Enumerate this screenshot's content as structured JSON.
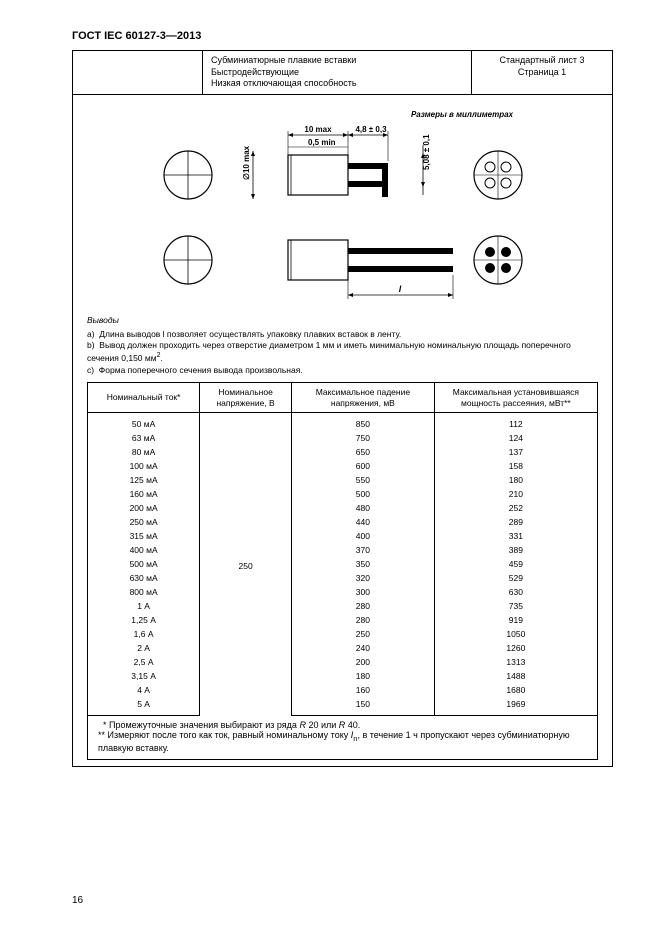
{
  "doc_title": "ГОСТ IEC 60127-3—2013",
  "header": {
    "mid_line1": "Субминиатюрные плавкие вставки",
    "mid_line2": "Быстродействующие",
    "mid_line3": "Низкая отключающая способность",
    "right_line1": "Стандартный лист 3",
    "right_line2": "Страница 1"
  },
  "diagram": {
    "caption": "Размеры в миллиметрах",
    "dim_top1": "10 max",
    "dim_top2": "4,8 ± 0,3",
    "dim_mid": "0,5 min",
    "dim_side": "5,08 ± 0,1",
    "dim_dia": "∅10 max",
    "dim_len": "l"
  },
  "conclusions": {
    "heading": "Выводы",
    "a": "a)  Длина выводов l позволяет осуществлять упаковку плавких вставок в ленту.",
    "b": "b)  Вывод должен проходить через отверстие диаметром 1 мм и иметь минимальную номинальную площадь поперечного сечения 0,150 мм",
    "b_sup": "2",
    "b_tail": ".",
    "c": "c)  Форма поперечного сечения вывода произвольная."
  },
  "table": {
    "headers": {
      "c1": "Номинальный ток*",
      "c2": "Номинальное напряжение, В",
      "c3": "Максимальное падение напряжения, мВ",
      "c4": "Максимальная установившаяся мощность рассеяния, мВт**"
    },
    "voltage": "250",
    "rows": [
      {
        "i": "50 мА",
        "v": "850",
        "p": "112"
      },
      {
        "i": "63 мА",
        "v": "750",
        "p": "124"
      },
      {
        "i": "80 мА",
        "v": "650",
        "p": "137"
      },
      {
        "i": "100 мА",
        "v": "600",
        "p": "158"
      },
      {
        "i": "125 мА",
        "v": "550",
        "p": "180"
      },
      {
        "i": "160 мА",
        "v": "500",
        "p": "210"
      },
      {
        "i": "200 мА",
        "v": "480",
        "p": "252"
      },
      {
        "i": "250 мА",
        "v": "440",
        "p": "289"
      },
      {
        "i": "315 мА",
        "v": "400",
        "p": "331"
      },
      {
        "i": "400 мА",
        "v": "370",
        "p": "389"
      },
      {
        "i": "500 мА",
        "v": "350",
        "p": "459"
      },
      {
        "i": "630 мА",
        "v": "320",
        "p": "529"
      },
      {
        "i": "800 мА",
        "v": "300",
        "p": "630"
      },
      {
        "i": "1 А",
        "v": "280",
        "p": "735"
      },
      {
        "i": "1,25 А",
        "v": "280",
        "p": "919"
      },
      {
        "i": "1,6 А",
        "v": "250",
        "p": "1050"
      },
      {
        "i": "2 А",
        "v": "240",
        "p": "1260"
      },
      {
        "i": "2,5 А",
        "v": "200",
        "p": "1313"
      },
      {
        "i": "3,15 А",
        "v": "180",
        "p": "1488"
      },
      {
        "i": "4 А",
        "v": "160",
        "p": "1680"
      },
      {
        "i": "5 А",
        "v": "150",
        "p": "1969"
      }
    ]
  },
  "footnotes": {
    "f1_pre": "  * Промежуточные значения выбирают из ряда ",
    "f1_i1": "R",
    "f1_i1b": " 20 или ",
    "f1_i2": "R",
    "f1_i2b": " 40.",
    "f2_pre": "** Измеряют после того как ток, равный номинальному току ",
    "f2_sym": "I",
    "f2_sub": "n",
    "f2_post": ", в течение 1 ч пропускают через субминиатюрную плавкую вставку."
  },
  "page_number": "16"
}
